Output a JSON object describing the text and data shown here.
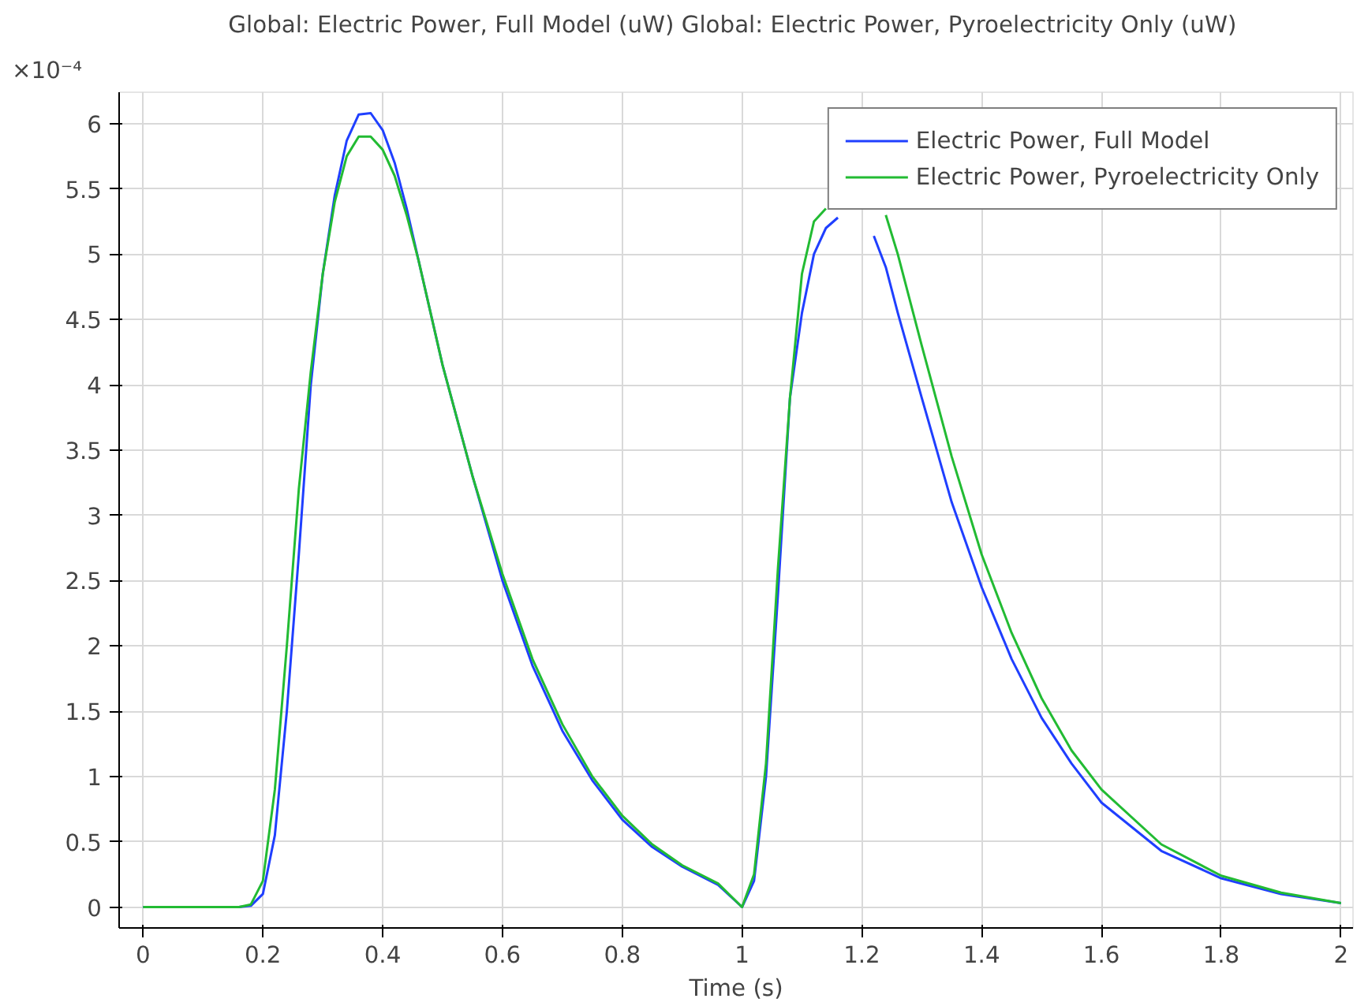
{
  "chart_data": {
    "type": "line",
    "title": "Global: Electric Power, Full Model (uW)  Global: Electric Power, Pyroelectricity Only (uW)",
    "xlabel": "Time (s)",
    "annotations": [
      "×10⁻⁴"
    ],
    "series": [
      {
        "name": "Electric Power, Full Model",
        "color": "#1f3fff",
        "x": [
          0,
          0.16,
          0.18,
          0.2,
          0.22,
          0.24,
          0.26,
          0.28,
          0.3,
          0.32,
          0.34,
          0.36,
          0.38,
          0.4,
          0.42,
          0.44,
          0.46,
          0.5,
          0.55,
          0.6,
          0.65,
          0.7,
          0.75,
          0.8,
          0.85,
          0.9,
          0.96,
          1.0,
          1.02,
          1.04,
          1.06,
          1.08,
          1.1,
          1.12,
          1.14,
          1.16,
          1.18,
          1.2,
          1.22,
          1.24,
          1.26,
          1.3,
          1.35,
          1.4,
          1.45,
          1.5,
          1.55,
          1.6,
          1.7,
          1.8,
          1.9,
          2.0
        ],
        "values": [
          0,
          0,
          0.01,
          0.1,
          0.55,
          1.5,
          2.7,
          4.0,
          4.85,
          5.45,
          5.87,
          6.07,
          6.08,
          5.95,
          5.7,
          5.35,
          4.95,
          4.15,
          3.3,
          2.5,
          1.85,
          1.35,
          0.97,
          0.67,
          0.46,
          0.31,
          0.17,
          0,
          0.2,
          1.0,
          2.4,
          3.9,
          4.55,
          5.0,
          5.2,
          5.28,
          null,
          null,
          5.14,
          4.9,
          4.55,
          3.9,
          3.1,
          2.45,
          1.9,
          1.45,
          1.1,
          0.8,
          0.43,
          0.22,
          0.1,
          0.03
        ]
      },
      {
        "name": "Electric Power, Pyroelectricity Only",
        "color": "#22bb33",
        "x": [
          0,
          0.16,
          0.18,
          0.2,
          0.22,
          0.24,
          0.26,
          0.28,
          0.3,
          0.32,
          0.34,
          0.36,
          0.38,
          0.4,
          0.42,
          0.44,
          0.46,
          0.5,
          0.55,
          0.6,
          0.65,
          0.7,
          0.75,
          0.8,
          0.85,
          0.9,
          0.96,
          1.0,
          1.02,
          1.04,
          1.06,
          1.08,
          1.1,
          1.12,
          1.14,
          1.16,
          1.18,
          1.2,
          1.22,
          1.24,
          1.26,
          1.3,
          1.35,
          1.4,
          1.45,
          1.5,
          1.55,
          1.6,
          1.7,
          1.8,
          1.9,
          2.0
        ],
        "values": [
          0,
          0,
          0.02,
          0.2,
          0.9,
          2.0,
          3.2,
          4.1,
          4.85,
          5.4,
          5.75,
          5.9,
          5.9,
          5.8,
          5.6,
          5.3,
          4.95,
          4.15,
          3.3,
          2.55,
          1.9,
          1.4,
          1.0,
          0.7,
          0.48,
          0.32,
          0.18,
          0,
          0.25,
          1.1,
          2.6,
          3.9,
          4.85,
          5.25,
          5.35,
          null,
          null,
          null,
          null,
          5.3,
          5.0,
          4.3,
          3.45,
          2.7,
          2.1,
          1.6,
          1.2,
          0.9,
          0.48,
          0.24,
          0.11,
          0.03
        ]
      }
    ],
    "xlim": [
      -0.04,
      2.02
    ],
    "ylim": [
      -0.16,
      6.24
    ],
    "xticks": [
      0,
      0.2,
      0.4,
      0.6,
      0.8,
      1,
      1.2,
      1.4,
      1.6,
      1.8,
      2
    ],
    "yticks": [
      0,
      0.5,
      1,
      1.5,
      2,
      2.5,
      3,
      3.5,
      4,
      4.5,
      5,
      5.5,
      6
    ],
    "grid": true,
    "legend": "top right",
    "line_style": "solid",
    "marker": "none"
  }
}
